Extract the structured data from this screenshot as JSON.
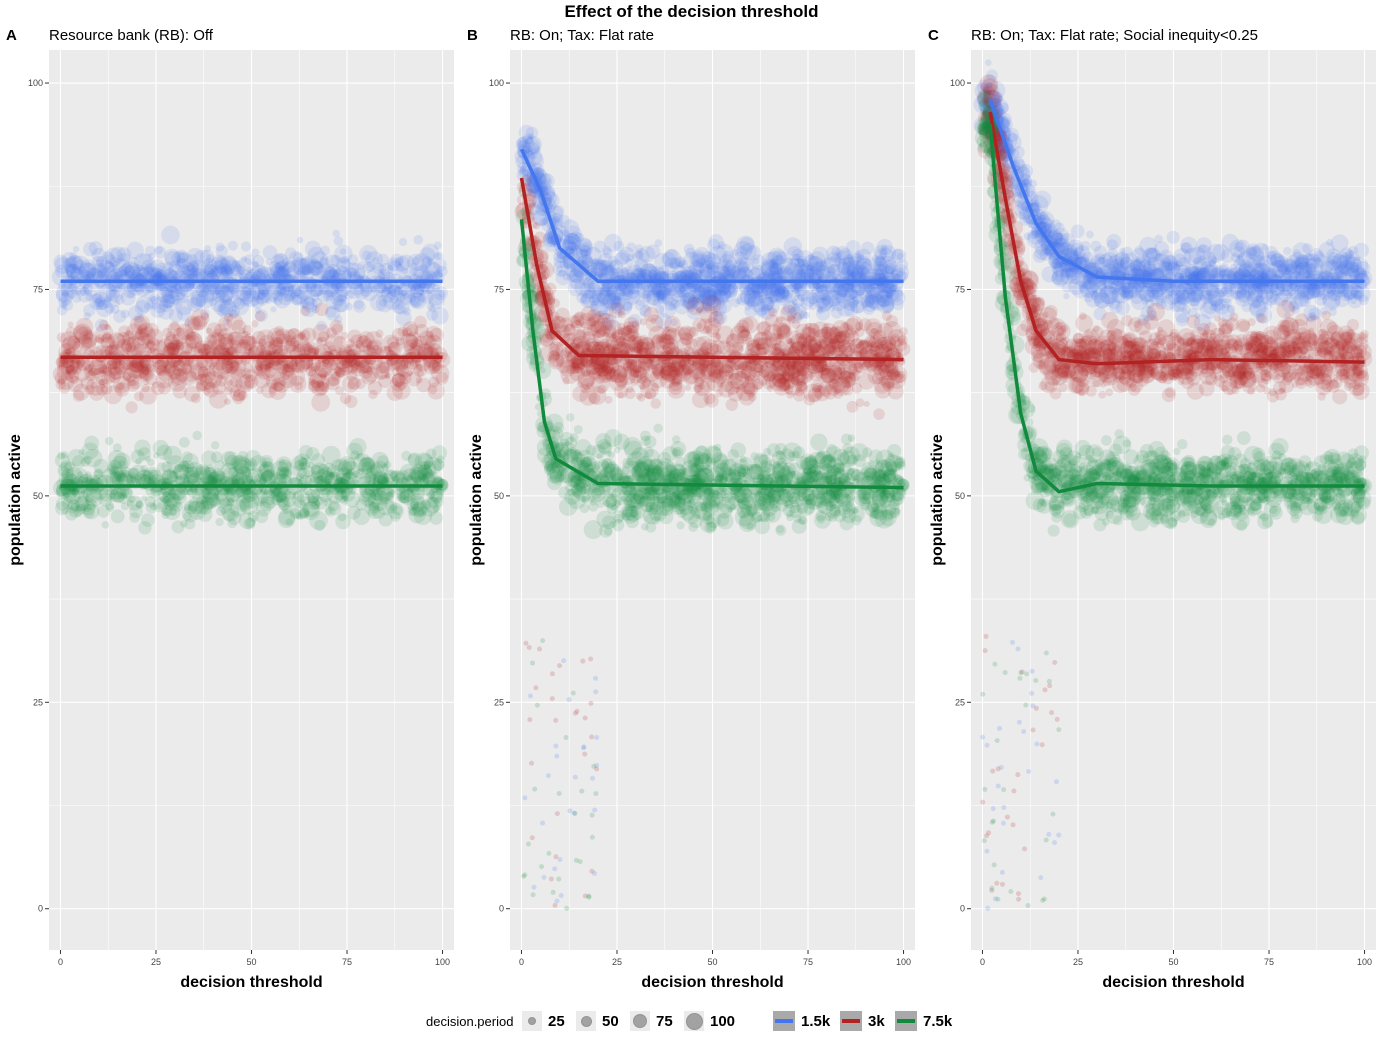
{
  "main_title": "Effect of the decision threshold",
  "legend": {
    "size_title": "decision.period",
    "size_items": [
      {
        "label": "25"
      },
      {
        "label": "50"
      },
      {
        "label": "75"
      },
      {
        "label": "100"
      }
    ],
    "color_items": [
      {
        "label": "1.5k",
        "color": "#4477ee"
      },
      {
        "label": "3k",
        "color": "#b22222"
      },
      {
        "label": "7.5k",
        "color": "#128a3e"
      }
    ]
  },
  "chart_data": [
    {
      "type": "scatter",
      "panel_letter": "A",
      "subtitle": "Resource bank (RB): Off",
      "xlabel": "decision threshold",
      "ylabel": "population active",
      "xlim": [
        -3,
        103
      ],
      "ylim": [
        -5,
        104
      ],
      "x_ticks": [
        "0",
        "25",
        "50",
        "75",
        "100"
      ],
      "y_ticks": [
        "0",
        "25",
        "50",
        "75",
        "100"
      ],
      "grid": true,
      "series": [
        {
          "name": "1.5k",
          "color": "#4477ee",
          "band": [
            72,
            80
          ],
          "trend": [
            [
              0,
              76
            ],
            [
              100,
              76
            ]
          ]
        },
        {
          "name": "3k",
          "color": "#b22222",
          "band": [
            62,
            71
          ],
          "trend": [
            [
              0,
              66.8
            ],
            [
              100,
              66.8
            ]
          ]
        },
        {
          "name": "7.5k",
          "color": "#128a3e",
          "band": [
            47,
            55.5
          ],
          "trend": [
            [
              0,
              51.2
            ],
            [
              100,
              51.2
            ]
          ]
        }
      ]
    },
    {
      "type": "scatter",
      "panel_letter": "B",
      "subtitle": "RB: On; Tax: Flat rate",
      "xlabel": "decision threshold",
      "ylabel": "population active",
      "xlim": [
        -3,
        103
      ],
      "ylim": [
        -5,
        104
      ],
      "x_ticks": [
        "0",
        "25",
        "50",
        "75",
        "100"
      ],
      "y_ticks": [
        "0",
        "25",
        "50",
        "75",
        "100"
      ],
      "grid": true,
      "series": [
        {
          "name": "1.5k",
          "color": "#4477ee",
          "band": [
            72,
            80
          ],
          "trend": [
            [
              0,
              92
            ],
            [
              5,
              87
            ],
            [
              10,
              80
            ],
            [
              20,
              76
            ],
            [
              100,
              76
            ]
          ]
        },
        {
          "name": "3k",
          "color": "#b22222",
          "band": [
            62,
            71.5
          ],
          "trend": [
            [
              0,
              88.5
            ],
            [
              4,
              78
            ],
            [
              8,
              70
            ],
            [
              15,
              67
            ],
            [
              100,
              66.5
            ]
          ]
        },
        {
          "name": "7.5k",
          "color": "#128a3e",
          "band": [
            46.5,
            56
          ],
          "trend": [
            [
              0,
              83.5
            ],
            [
              3,
              70
            ],
            [
              6,
              59
            ],
            [
              9,
              54.5
            ],
            [
              20,
              51.5
            ],
            [
              100,
              51
            ]
          ]
        }
      ]
    },
    {
      "type": "scatter",
      "panel_letter": "C",
      "subtitle": "RB: On; Tax: Flat rate; Social inequity<0.25",
      "xlabel": "decision threshold",
      "ylabel": "population active",
      "xlim": [
        -3,
        103
      ],
      "ylim": [
        -5,
        104
      ],
      "x_ticks": [
        "0",
        "25",
        "50",
        "75",
        "100"
      ],
      "y_ticks": [
        "0",
        "25",
        "50",
        "75",
        "100"
      ],
      "grid": true,
      "series": [
        {
          "name": "1.5k",
          "color": "#4477ee",
          "band": [
            72.5,
            80
          ],
          "trend": [
            [
              2,
              98
            ],
            [
              8,
              90
            ],
            [
              14,
              83
            ],
            [
              20,
              79
            ],
            [
              30,
              76.5
            ],
            [
              50,
              76
            ],
            [
              100,
              76
            ]
          ]
        },
        {
          "name": "3k",
          "color": "#b22222",
          "band": [
            62.5,
            71
          ],
          "trend": [
            [
              2,
              96.5
            ],
            [
              6,
              86
            ],
            [
              10,
              76
            ],
            [
              14,
              70
            ],
            [
              20,
              66.5
            ],
            [
              30,
              66
            ],
            [
              60,
              66.5
            ],
            [
              100,
              66.2
            ]
          ]
        },
        {
          "name": "7.5k",
          "color": "#128a3e",
          "band": [
            47,
            55.5
          ],
          "trend": [
            [
              2,
              95
            ],
            [
              6,
              74
            ],
            [
              10,
              60
            ],
            [
              14,
              53
            ],
            [
              20,
              50.5
            ],
            [
              30,
              51.5
            ],
            [
              60,
              51.2
            ],
            [
              100,
              51.2
            ]
          ]
        }
      ]
    }
  ]
}
